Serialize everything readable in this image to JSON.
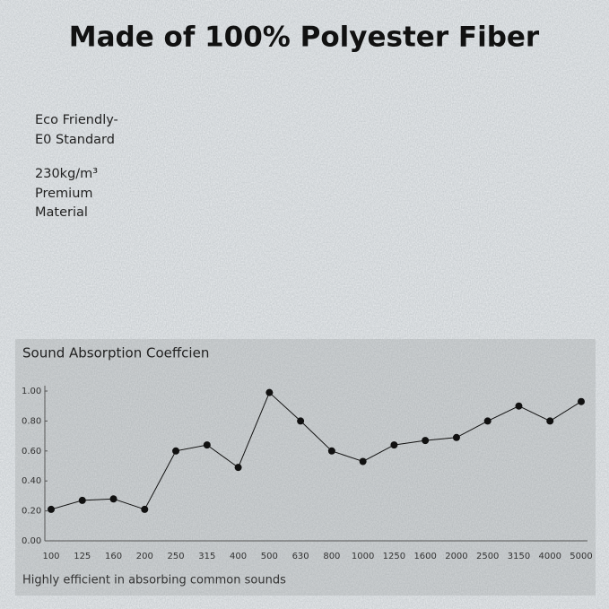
{
  "header": {
    "title": "Made of 100% Polyester Fiber"
  },
  "features": [
    [
      "Eco Friendly-",
      "E0 Standard"
    ],
    [
      "230kg/m³",
      "Premium",
      "Material"
    ]
  ],
  "chart_data": {
    "type": "line",
    "title": "Sound Absorption Coeffcien",
    "categories": [
      "100",
      "125",
      "160",
      "200",
      "250",
      "315",
      "400",
      "500",
      "630",
      "800",
      "1000",
      "1250",
      "1600",
      "2000",
      "2500",
      "3150",
      "4000",
      "5000"
    ],
    "values": [
      0.21,
      0.27,
      0.28,
      0.21,
      0.6,
      0.64,
      0.49,
      0.99,
      0.8,
      0.6,
      0.53,
      0.64,
      0.67,
      0.69,
      0.8,
      0.9,
      0.8,
      0.93
    ],
    "color": "#111111",
    "ylim": [
      0,
      1
    ],
    "yticks": [
      {
        "value": 0,
        "label": "0.00"
      },
      {
        "value": 0.2,
        "label": "0.20"
      },
      {
        "value": 0.4,
        "label": "0.40"
      },
      {
        "value": 0.6,
        "label": "0.60"
      },
      {
        "value": 0.8,
        "label": "0.80"
      },
      {
        "value": 1,
        "label": "1.00"
      }
    ],
    "grid": false,
    "caption": "Highly efficient in absorbing common sounds"
  }
}
